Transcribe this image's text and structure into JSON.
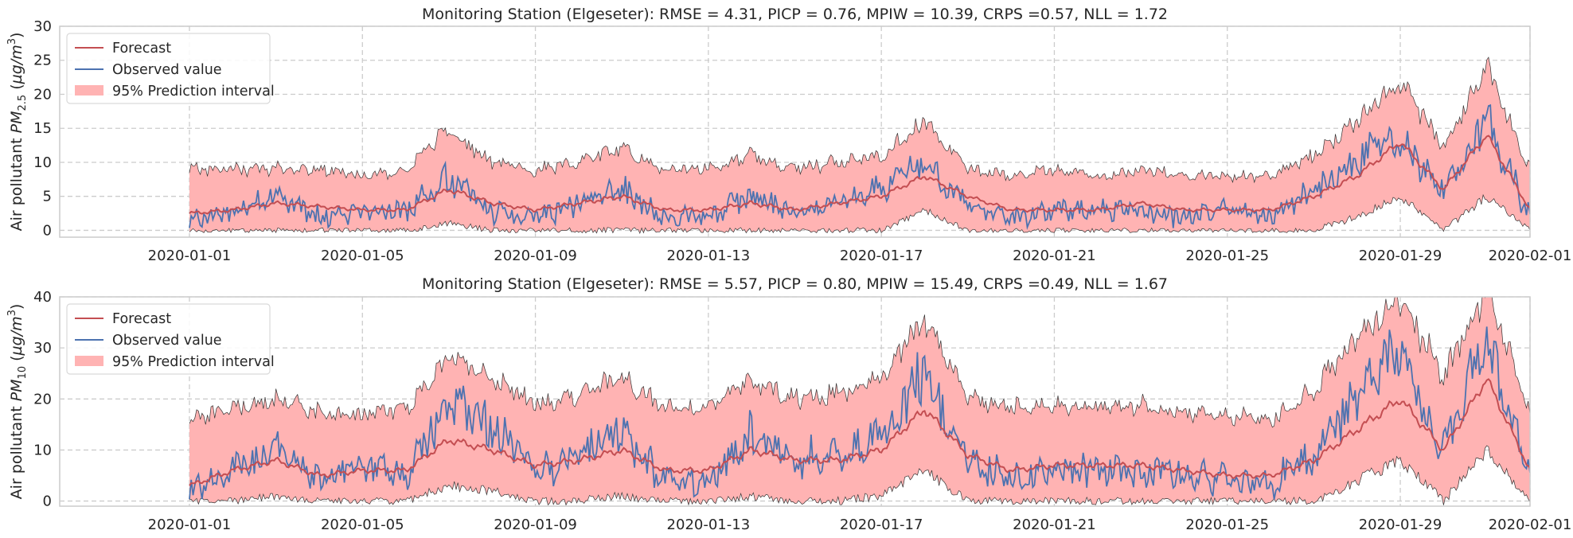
{
  "chart_data": [
    {
      "type": "line",
      "title": "Monitoring Station (Elgeseter): RMSE = 4.31, PICP = 0.76, MPIW = 10.39, CRPS =0.57, NLL = 1.72",
      "ylabel": "Air pollutant PM2.5 (µg/m³)",
      "ylabel_parts": {
        "prefix": "Air pollutant ",
        "var": "PM",
        "sub": "2.5",
        "unit_open": " (",
        "unit": "µg/m",
        "sup": "3",
        "unit_close": ")"
      },
      "ylim": [
        -1,
        30
      ],
      "yticks": [
        0,
        5,
        10,
        15,
        20,
        25,
        30
      ],
      "xlim": [
        "2019-12-29",
        "2020-02-01"
      ],
      "xticks": [
        "2020-01-01",
        "2020-01-05",
        "2020-01-09",
        "2020-01-13",
        "2020-01-17",
        "2020-01-21",
        "2020-01-25",
        "2020-01-29",
        "2020-02-01"
      ],
      "grid": true,
      "legend_position": "top-left",
      "legend": [
        "Forecast",
        "Observed value",
        "95% Prediction interval"
      ],
      "series": [
        {
          "name": "Forecast",
          "color": "#c44e52",
          "x": [
            "2020-01-01",
            "2020-01-02",
            "2020-01-03",
            "2020-01-04",
            "2020-01-05",
            "2020-01-06",
            "2020-01-07",
            "2020-01-08",
            "2020-01-09",
            "2020-01-10",
            "2020-01-11",
            "2020-01-12",
            "2020-01-13",
            "2020-01-14",
            "2020-01-15",
            "2020-01-16",
            "2020-01-17",
            "2020-01-18",
            "2020-01-19",
            "2020-01-20",
            "2020-01-21",
            "2020-01-22",
            "2020-01-23",
            "2020-01-24",
            "2020-01-25",
            "2020-01-26",
            "2020-01-27",
            "2020-01-28",
            "2020-01-29",
            "2020-01-30",
            "2020-01-31",
            "2020-02-01"
          ],
          "values": [
            2.5,
            3,
            4,
            3.5,
            3,
            3,
            6,
            4,
            3,
            4,
            5,
            3,
            3,
            4,
            3,
            4,
            5,
            8,
            5,
            3,
            3,
            3,
            4,
            3,
            3,
            3,
            5,
            8,
            13,
            6,
            14,
            3
          ]
        },
        {
          "name": "Observed value",
          "color": "#4c72b0",
          "x": [
            "2020-01-01",
            "2020-01-02",
            "2020-01-03",
            "2020-01-04",
            "2020-01-05",
            "2020-01-06",
            "2020-01-07",
            "2020-01-08",
            "2020-01-09",
            "2020-01-10",
            "2020-01-11",
            "2020-01-12",
            "2020-01-13",
            "2020-01-14",
            "2020-01-15",
            "2020-01-16",
            "2020-01-17",
            "2020-01-18",
            "2020-01-19",
            "2020-01-20",
            "2020-01-21",
            "2020-01-22",
            "2020-01-23",
            "2020-01-24",
            "2020-01-25",
            "2020-01-26",
            "2020-01-27",
            "2020-01-28",
            "2020-01-29",
            "2020-01-30",
            "2020-01-31",
            "2020-02-01"
          ],
          "values": [
            1,
            3,
            5,
            2,
            3,
            3,
            8,
            3,
            2,
            4,
            6,
            2,
            2,
            5,
            3,
            4,
            6,
            10,
            4,
            2,
            3,
            3,
            3,
            2,
            3,
            2,
            6,
            10,
            14,
            6,
            16,
            2
          ]
        },
        {
          "name": "95% Prediction interval",
          "color": "#ffb3b3",
          "x": [
            "2020-01-01",
            "2020-01-02",
            "2020-01-03",
            "2020-01-04",
            "2020-01-05",
            "2020-01-06",
            "2020-01-07",
            "2020-01-08",
            "2020-01-09",
            "2020-01-10",
            "2020-01-11",
            "2020-01-12",
            "2020-01-13",
            "2020-01-14",
            "2020-01-15",
            "2020-01-16",
            "2020-01-17",
            "2020-01-18",
            "2020-01-19",
            "2020-01-20",
            "2020-01-21",
            "2020-01-22",
            "2020-01-23",
            "2020-01-24",
            "2020-01-25",
            "2020-01-26",
            "2020-01-27",
            "2020-01-28",
            "2020-01-29",
            "2020-01-30",
            "2020-01-31",
            "2020-02-01"
          ],
          "lower": [
            0,
            0,
            0,
            0,
            0,
            0,
            1,
            0,
            0,
            0,
            0,
            0,
            0,
            0,
            0,
            0,
            0,
            3,
            0,
            0,
            0,
            0,
            0,
            0,
            0,
            0,
            0,
            2,
            5,
            0,
            5,
            0
          ],
          "upper": [
            9,
            9,
            9,
            9,
            8,
            9,
            15,
            10,
            9,
            10,
            12,
            9,
            9,
            11,
            9,
            10,
            11,
            16,
            9,
            8,
            9,
            8,
            9,
            8,
            8,
            8,
            11,
            16,
            22,
            12,
            24,
            9
          ]
        }
      ]
    },
    {
      "type": "line",
      "title": "Monitoring Station (Elgeseter): RMSE = 5.57, PICP = 0.80, MPIW = 15.49, CRPS =0.49, NLL = 1.67",
      "ylabel": "Air pollutant PM10 (µg/m³)",
      "ylabel_parts": {
        "prefix": "Air pollutant ",
        "var": "PM",
        "sub": "10",
        "unit_open": " (",
        "unit": "µg/m",
        "sup": "3",
        "unit_close": ")"
      },
      "ylim": [
        -1,
        40
      ],
      "yticks": [
        0,
        10,
        20,
        30,
        40
      ],
      "xlim": [
        "2019-12-29",
        "2020-02-01"
      ],
      "xticks": [
        "2020-01-01",
        "2020-01-05",
        "2020-01-09",
        "2020-01-13",
        "2020-01-17",
        "2020-01-21",
        "2020-01-25",
        "2020-01-29",
        "2020-02-01"
      ],
      "grid": true,
      "legend_position": "top-left",
      "legend": [
        "Forecast",
        "Observed value",
        "95% Prediction interval"
      ],
      "series": [
        {
          "name": "Forecast",
          "color": "#c44e52",
          "x": [
            "2020-01-01",
            "2020-01-02",
            "2020-01-03",
            "2020-01-04",
            "2020-01-05",
            "2020-01-06",
            "2020-01-07",
            "2020-01-08",
            "2020-01-09",
            "2020-01-10",
            "2020-01-11",
            "2020-01-12",
            "2020-01-13",
            "2020-01-14",
            "2020-01-15",
            "2020-01-16",
            "2020-01-17",
            "2020-01-18",
            "2020-01-19",
            "2020-01-20",
            "2020-01-21",
            "2020-01-22",
            "2020-01-23",
            "2020-01-24",
            "2020-01-25",
            "2020-01-26",
            "2020-01-27",
            "2020-01-28",
            "2020-01-29",
            "2020-01-30",
            "2020-01-31",
            "2020-02-01"
          ],
          "values": [
            3,
            6,
            8,
            5,
            6,
            6,
            12,
            10,
            7,
            8,
            10,
            6,
            6,
            10,
            8,
            8,
            10,
            18,
            9,
            6,
            7,
            7,
            7,
            6,
            5,
            5,
            8,
            14,
            20,
            10,
            24,
            6
          ]
        },
        {
          "name": "Observed value",
          "color": "#4c72b0",
          "x": [
            "2020-01-01",
            "2020-01-02",
            "2020-01-03",
            "2020-01-04",
            "2020-01-05",
            "2020-01-06",
            "2020-01-07",
            "2020-01-08",
            "2020-01-09",
            "2020-01-10",
            "2020-01-11",
            "2020-01-12",
            "2020-01-13",
            "2020-01-14",
            "2020-01-15",
            "2020-01-16",
            "2020-01-17",
            "2020-01-18",
            "2020-01-19",
            "2020-01-20",
            "2020-01-21",
            "2020-01-22",
            "2020-01-23",
            "2020-01-24",
            "2020-01-25",
            "2020-01-26",
            "2020-01-27",
            "2020-01-28",
            "2020-01-29",
            "2020-01-30",
            "2020-01-31",
            "2020-02-01"
          ],
          "values": [
            2,
            6,
            10,
            4,
            7,
            5,
            20,
            14,
            6,
            9,
            14,
            4,
            4,
            13,
            8,
            9,
            12,
            25,
            8,
            4,
            6,
            6,
            6,
            5,
            4,
            3,
            9,
            20,
            30,
            10,
            32,
            5
          ]
        },
        {
          "name": "95% Prediction interval",
          "color": "#ffb3b3",
          "x": [
            "2020-01-01",
            "2020-01-02",
            "2020-01-03",
            "2020-01-04",
            "2020-01-05",
            "2020-01-06",
            "2020-01-07",
            "2020-01-08",
            "2020-01-09",
            "2020-01-10",
            "2020-01-11",
            "2020-01-12",
            "2020-01-13",
            "2020-01-14",
            "2020-01-15",
            "2020-01-16",
            "2020-01-17",
            "2020-01-18",
            "2020-01-19",
            "2020-01-20",
            "2020-01-21",
            "2020-01-22",
            "2020-01-23",
            "2020-01-24",
            "2020-01-25",
            "2020-01-26",
            "2020-01-27",
            "2020-01-28",
            "2020-01-29",
            "2020-01-30",
            "2020-01-31",
            "2020-02-01"
          ],
          "lower": [
            0,
            0,
            1,
            0,
            0,
            0,
            3,
            2,
            0,
            0,
            1,
            0,
            0,
            1,
            0,
            0,
            1,
            6,
            0,
            0,
            0,
            0,
            0,
            0,
            0,
            0,
            0,
            4,
            8,
            0,
            10,
            0
          ],
          "upper": [
            16,
            18,
            20,
            17,
            17,
            18,
            28,
            24,
            19,
            21,
            24,
            18,
            18,
            24,
            20,
            21,
            24,
            36,
            21,
            18,
            19,
            18,
            19,
            17,
            17,
            16,
            22,
            32,
            40,
            24,
            42,
            17
          ]
        }
      ]
    }
  ]
}
